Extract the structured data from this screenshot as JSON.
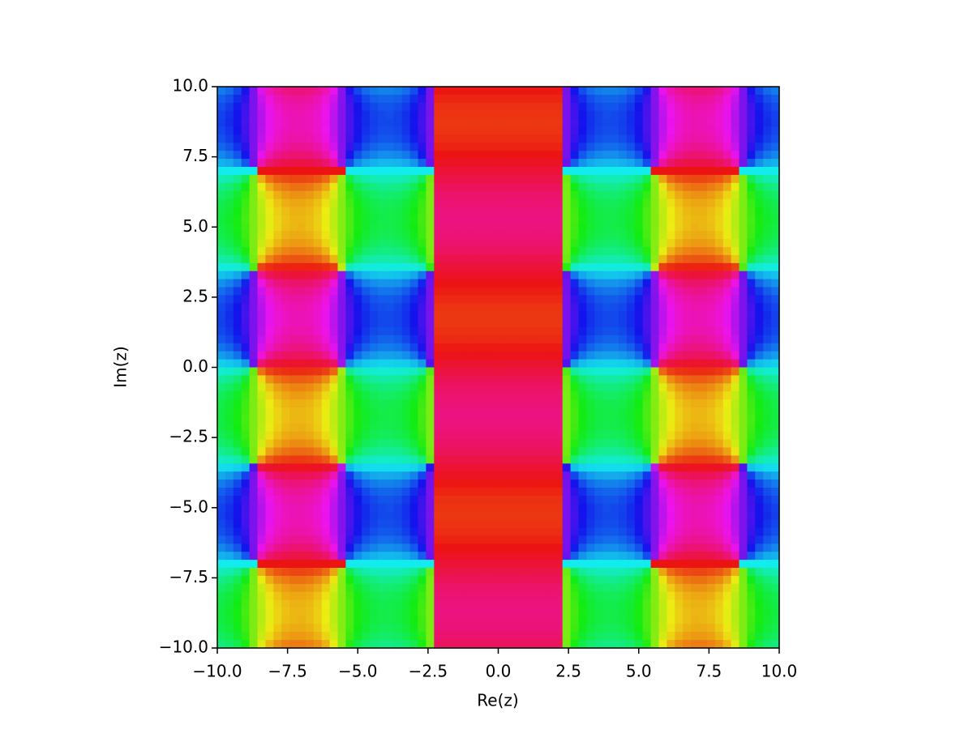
{
  "chart_data": {
    "type": "domain-coloring",
    "xlabel": "Re(z)",
    "ylabel": "Im(z)",
    "xlim": [
      -10,
      10
    ],
    "ylim": [
      -10,
      10
    ],
    "xticks": [
      {
        "value": -10,
        "label": "−10.0"
      },
      {
        "value": -7.5,
        "label": "−7.5"
      },
      {
        "value": -5,
        "label": "−5.0"
      },
      {
        "value": -2.5,
        "label": "−2.5"
      },
      {
        "value": 0,
        "label": "0.0"
      },
      {
        "value": 2.5,
        "label": "2.5"
      },
      {
        "value": 5,
        "label": "5.0"
      },
      {
        "value": 7.5,
        "label": "7.5"
      },
      {
        "value": 10,
        "label": "10.0"
      }
    ],
    "yticks": [
      {
        "value": -10,
        "label": "−10.0"
      },
      {
        "value": -7.5,
        "label": "−7.5"
      },
      {
        "value": -5,
        "label": "−5.0"
      },
      {
        "value": -2.5,
        "label": "−2.5"
      },
      {
        "value": 0,
        "label": "0.0"
      },
      {
        "value": 2.5,
        "label": "2.5"
      },
      {
        "value": 5,
        "label": "5.0"
      },
      {
        "value": 7.5,
        "label": "7.5"
      },
      {
        "value": 10,
        "label": "10.0"
      }
    ]
  }
}
